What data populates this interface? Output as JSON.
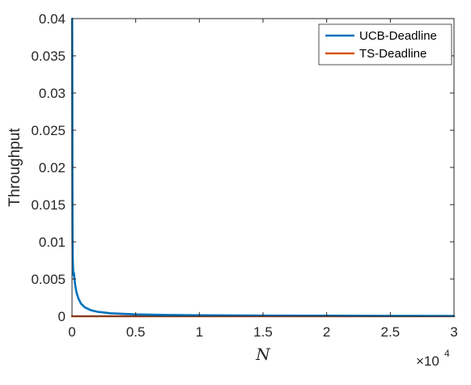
{
  "chart_data": {
    "type": "line",
    "xlabel": "N",
    "ylabel": "Throughput",
    "x_exponent_label": "×10",
    "x_exponent_power": "4",
    "xlim": [
      0,
      3
    ],
    "ylim": [
      0,
      0.04
    ],
    "x_ticks": [
      "0",
      "0.5",
      "1",
      "1.5",
      "2",
      "2.5",
      "3"
    ],
    "y_ticks": [
      "0",
      "0.005",
      "0.01",
      "0.015",
      "0.02",
      "0.025",
      "0.03",
      "0.035",
      "0.04"
    ],
    "grid": false,
    "legend_position": "top-right",
    "series": [
      {
        "name": "UCB-Deadline",
        "color": "#0072BD",
        "points": [
          [
            0.001,
            0.04
          ],
          [
            0.002,
            0.036
          ],
          [
            0.003,
            0.02
          ],
          [
            0.004,
            0.011
          ],
          [
            0.005,
            0.0085
          ],
          [
            0.006,
            0.0075
          ],
          [
            0.008,
            0.0065
          ],
          [
            0.01,
            0.006
          ],
          [
            0.012,
            0.0055
          ],
          [
            0.015,
            0.0058
          ],
          [
            0.018,
            0.0052
          ],
          [
            0.025,
            0.0042
          ],
          [
            0.035,
            0.0032
          ],
          [
            0.05,
            0.0024
          ],
          [
            0.07,
            0.0017
          ],
          [
            0.1,
            0.0012
          ],
          [
            0.15,
            0.0008
          ],
          [
            0.2,
            0.0006
          ],
          [
            0.3,
            0.0004
          ],
          [
            0.5,
            0.00025
          ],
          [
            0.75,
            0.00017
          ],
          [
            1.0,
            0.00013
          ],
          [
            1.5,
            9e-05
          ],
          [
            2.0,
            7e-05
          ],
          [
            2.5,
            5e-05
          ],
          [
            3.0,
            4e-05
          ]
        ]
      },
      {
        "name": "TS-Deadline",
        "color": "#D95319",
        "points": [
          [
            0,
            0.0
          ],
          [
            3.0,
            0.0
          ]
        ]
      }
    ]
  }
}
